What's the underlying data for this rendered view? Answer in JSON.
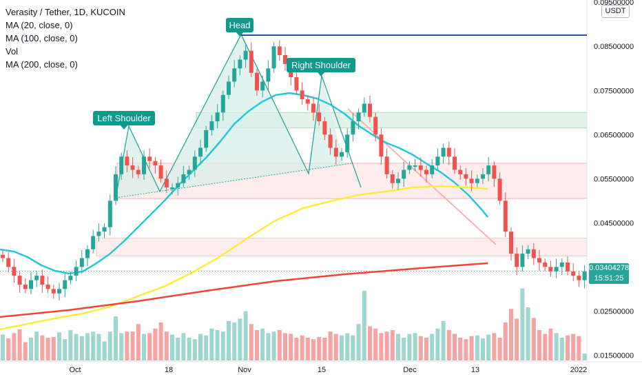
{
  "legend": {
    "title": "Verasity / Tether, 1D, KUCOIN",
    "ma20": "MA (20, close, 0)",
    "ma100": "MA (100, close, 0)",
    "vol": "Vol",
    "ma200": "MA (200, close, 0)"
  },
  "currency_badge": "USDT",
  "last_price": {
    "value": "0.03404278",
    "countdown": "15:51:25"
  },
  "colors": {
    "up": "#26a69a",
    "down": "#ef5350",
    "ma20": "#26c6da",
    "ma100": "#ffeb3b",
    "ma200": "#f44336",
    "neckline": "#1e53a7",
    "label_bg": "#0f9a8c"
  },
  "chart_data": {
    "type": "candlestick",
    "title": "Verasity / Tether, 1D, KUCOIN",
    "x_ticks": [
      "Oct",
      "18",
      "Nov",
      "15",
      "Dec",
      "13",
      "2022"
    ],
    "y_ticks": [
      "0.01500000",
      "0.02500000",
      "0.03500000",
      "0.04500000",
      "0.05500000",
      "0.06500000",
      "0.07500000",
      "0.08500000",
      "0.09500000"
    ],
    "y_range": [
      0.0135,
      0.0955
    ],
    "annotations": [
      "Head",
      "Left Shoulder",
      "Right Shoulder"
    ],
    "series": [
      {
        "name": "MA (20, close, 0)"
      },
      {
        "name": "MA (100, close, 0)"
      },
      {
        "name": "MA (200, close, 0)"
      }
    ],
    "price": [
      0.037,
      0.035,
      0.033,
      0.031,
      0.03,
      0.032,
      0.033,
      0.031,
      0.03,
      0.029,
      0.03,
      0.032,
      0.033,
      0.035,
      0.037,
      0.039,
      0.042,
      0.043,
      0.044,
      0.05,
      0.056,
      0.06,
      0.058,
      0.057,
      0.056,
      0.06,
      0.059,
      0.058,
      0.055,
      0.053,
      0.053,
      0.054,
      0.056,
      0.057,
      0.06,
      0.062,
      0.066,
      0.068,
      0.07,
      0.074,
      0.077,
      0.08,
      0.082,
      0.084,
      0.079,
      0.075,
      0.077,
      0.08,
      0.085,
      0.083,
      0.081,
      0.078,
      0.075,
      0.073,
      0.072,
      0.07,
      0.068,
      0.065,
      0.062,
      0.06,
      0.061,
      0.065,
      0.068,
      0.07,
      0.072,
      0.069,
      0.065,
      0.06,
      0.056,
      0.054,
      0.055,
      0.057,
      0.058,
      0.058,
      0.057,
      0.056,
      0.058,
      0.06,
      0.062,
      0.06,
      0.057,
      0.056,
      0.055,
      0.054,
      0.055,
      0.056,
      0.058,
      0.055,
      0.05,
      0.043,
      0.038,
      0.035,
      0.038,
      0.039,
      0.037,
      0.036,
      0.035,
      0.034,
      0.035,
      0.036,
      0.034,
      0.033,
      0.032,
      0.034
    ],
    "volume": [
      0.34,
      0.29,
      0.36,
      0.41,
      0.24,
      0.3,
      0.38,
      0.33,
      0.3,
      0.31,
      0.37,
      0.28,
      0.4,
      0.35,
      0.32,
      0.36,
      0.38,
      0.35,
      0.25,
      0.38,
      0.58,
      0.36,
      0.38,
      0.38,
      0.48,
      0.35,
      0.36,
      0.42,
      0.5,
      0.38,
      0.34,
      0.3,
      0.36,
      0.3,
      0.28,
      0.35,
      0.33,
      0.42,
      0.4,
      0.38,
      0.52,
      0.5,
      0.55,
      0.65,
      0.48,
      0.4,
      0.42,
      0.36,
      0.38,
      0.4,
      0.36,
      0.35,
      0.3,
      0.33,
      0.3,
      0.28,
      0.31,
      0.3,
      0.38,
      0.35,
      0.33,
      0.36,
      0.33,
      0.48,
      0.92,
      0.45,
      0.42,
      0.36,
      0.38,
      0.4,
      0.35,
      0.3,
      0.35,
      0.36,
      0.32,
      0.3,
      0.35,
      0.42,
      0.52,
      0.4,
      0.35,
      0.3,
      0.28,
      0.32,
      0.33,
      0.29,
      0.34,
      0.36,
      0.3,
      0.5,
      0.68,
      0.55,
      0.95,
      0.7,
      0.56,
      0.4,
      0.35,
      0.42,
      0.36,
      0.3,
      0.33,
      0.35,
      0.32,
      0.09
    ]
  }
}
